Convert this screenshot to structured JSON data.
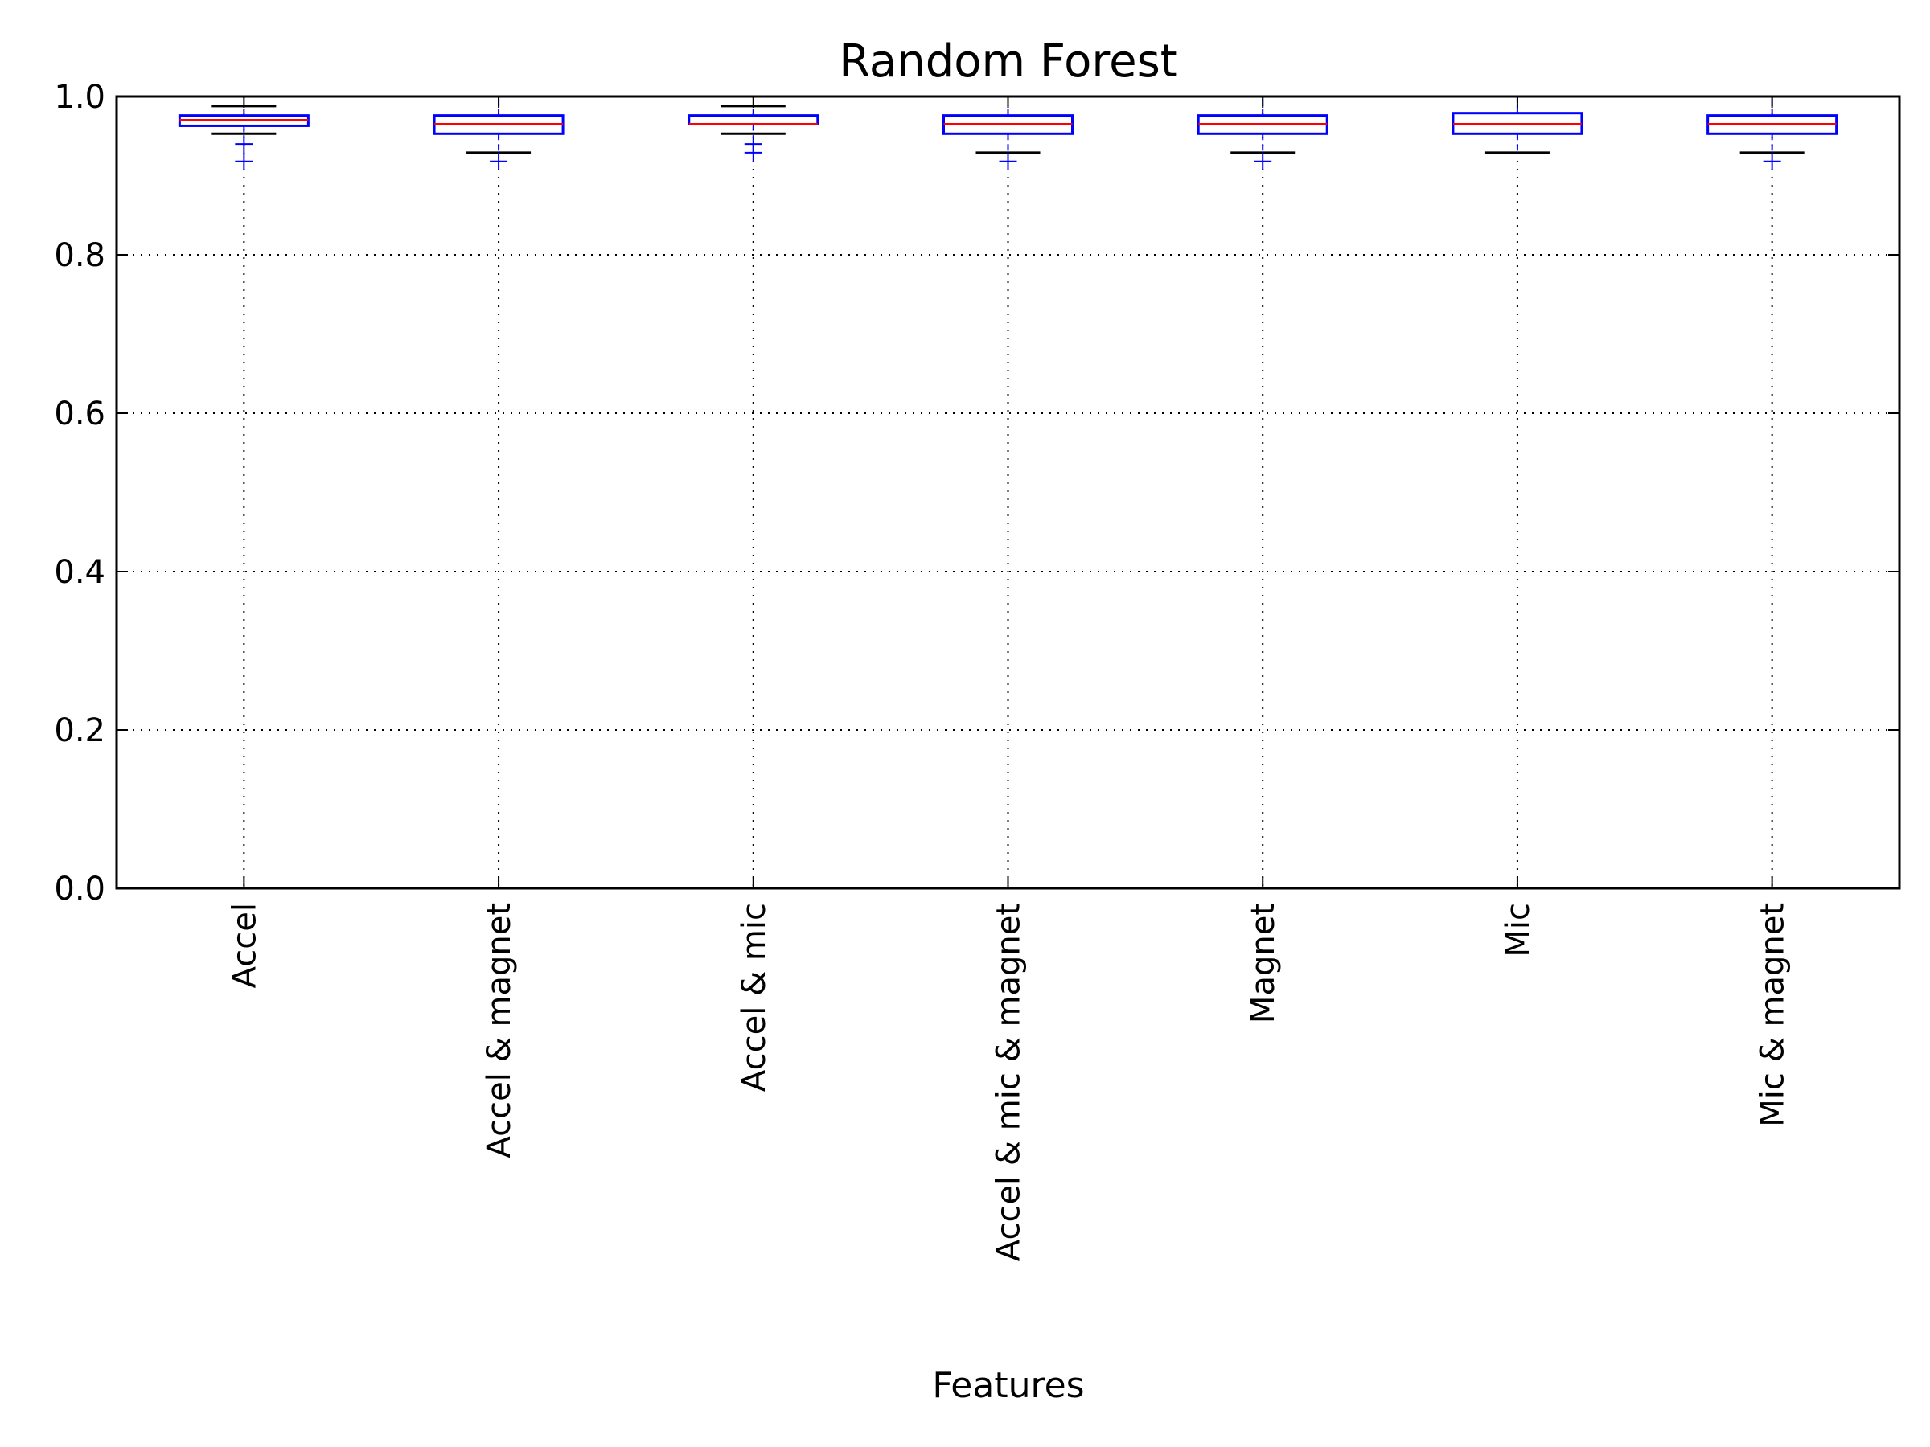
{
  "chart_data": {
    "type": "box",
    "title": "Random Forest",
    "xlabel": "Features",
    "ylabel": "",
    "ylim": [
      0.0,
      1.0
    ],
    "yticks": [
      "0.0",
      "0.2",
      "0.4",
      "0.6",
      "0.8",
      "1.0"
    ],
    "grid": true,
    "categories": [
      "Accel",
      "Accel & magnet",
      "Accel & mic",
      "Accel & mic & magnet",
      "Magnet",
      "Mic",
      "Mic & magnet"
    ],
    "boxes": [
      {
        "whisker_low": 0.953,
        "q1": 0.963,
        "median": 0.97,
        "q3": 0.976,
        "whisker_high": 0.988,
        "outliers": [
          0.94,
          0.918
        ]
      },
      {
        "whisker_low": 0.929,
        "q1": 0.953,
        "median": 0.965,
        "q3": 0.976,
        "whisker_high": 1.0,
        "outliers": [
          0.918
        ]
      },
      {
        "whisker_low": 0.953,
        "q1": 0.965,
        "median": 0.965,
        "q3": 0.976,
        "whisker_high": 0.988,
        "outliers": [
          0.94,
          0.929
        ]
      },
      {
        "whisker_low": 0.929,
        "q1": 0.953,
        "median": 0.965,
        "q3": 0.976,
        "whisker_high": 1.0,
        "outliers": [
          0.918
        ]
      },
      {
        "whisker_low": 0.929,
        "q1": 0.953,
        "median": 0.965,
        "q3": 0.976,
        "whisker_high": 1.0,
        "outliers": [
          0.918
        ]
      },
      {
        "whisker_low": 0.929,
        "q1": 0.953,
        "median": 0.965,
        "q3": 0.979,
        "whisker_high": 1.0,
        "outliers": []
      },
      {
        "whisker_low": 0.929,
        "q1": 0.953,
        "median": 0.965,
        "q3": 0.976,
        "whisker_high": 1.0,
        "outliers": [
          0.918
        ]
      }
    ],
    "colors": {
      "box": "#0000ff",
      "median": "#ff0000",
      "whisker_cap": "#000000",
      "outlier": "#0000ff"
    }
  }
}
